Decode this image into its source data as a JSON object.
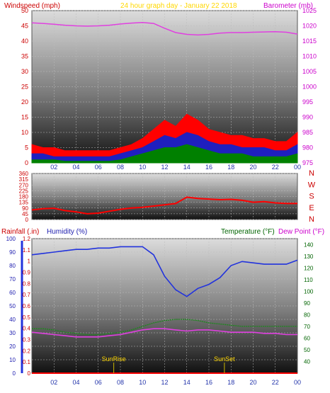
{
  "colors": {
    "wind_speed": "#ff0000",
    "wind_avg": "#1f1fbf",
    "wind_low": "#008000",
    "barometer": "#e040e0",
    "direction": "#ff0000",
    "humidity": "#2233dd",
    "temperature": "#1a8a1a",
    "dew_point": "#e040e0",
    "rainfall": "#ff0000",
    "title": "#ffd700",
    "rain_label": "#cc0000",
    "humidity_label": "#1c1caf",
    "temp_label": "#006400",
    "sun_marker": "#c8b400"
  },
  "header": {
    "windspeed_label": "Windspeed (mph)",
    "title": "24 hour graph day - January 22 2018",
    "barometer_label": "Barometer (mb)"
  },
  "footer": {
    "rainfall_label": "Rainfall (.in)",
    "humidity_label": "Humidity (%)",
    "temperature_label": "Temperature (°F)",
    "dewpoint_label": "Dew Point (°F)",
    "sunrise_label": "SunRise",
    "sunset_label": "SunSet"
  },
  "chart_data": [
    {
      "type": "line",
      "panel": "wind",
      "x_ticks": [
        "02",
        "04",
        "06",
        "08",
        "10",
        "12",
        "14",
        "16",
        "18",
        "20",
        "22",
        "00"
      ],
      "wind_ylim": [
        0,
        50
      ],
      "wind_ticks": [
        0,
        5,
        10,
        15,
        20,
        25,
        30,
        35,
        40,
        45,
        50
      ],
      "baro_ylim": [
        975,
        1025
      ],
      "baro_ticks": [
        975,
        980,
        985,
        990,
        995,
        1000,
        1005,
        1010,
        1015,
        1020,
        1025
      ],
      "x": [
        0,
        1,
        2,
        3,
        4,
        5,
        6,
        7,
        8,
        9,
        10,
        11,
        12,
        13,
        14,
        15,
        16,
        17,
        18,
        19,
        20,
        21,
        22,
        23,
        24
      ],
      "series": [
        {
          "key": "gust",
          "values": [
            6,
            5,
            5,
            4,
            4,
            4,
            4,
            4,
            5,
            6,
            8,
            11,
            14,
            12,
            16,
            14,
            11,
            10,
            9,
            9,
            8,
            8,
            7,
            7,
            10
          ]
        },
        {
          "key": "avg",
          "values": [
            3,
            3,
            2,
            2,
            2,
            2,
            2,
            2,
            3,
            4,
            5,
            7,
            9,
            8,
            10,
            9,
            7,
            6,
            6,
            5,
            5,
            5,
            4,
            4,
            6
          ]
        },
        {
          "key": "low",
          "values": [
            1,
            1,
            1,
            0.5,
            0.5,
            0.5,
            0.5,
            0.5,
            1,
            2,
            3,
            4,
            5,
            5,
            6,
            5,
            4,
            3,
            3,
            3,
            2,
            2,
            2,
            2,
            3
          ]
        },
        {
          "key": "barometer",
          "values": [
            1021,
            1020.8,
            1020.5,
            1020.2,
            1020,
            1019.9,
            1020,
            1020.2,
            1020.6,
            1020.9,
            1021.1,
            1020.8,
            1019.2,
            1017.8,
            1017.2,
            1017,
            1017.2,
            1017.6,
            1017.8,
            1017.8,
            1017.9,
            1018,
            1018.1,
            1017.9,
            1017.3
          ]
        }
      ]
    },
    {
      "type": "line",
      "panel": "direction",
      "ylim": [
        0,
        360
      ],
      "y_ticks": [
        0,
        45,
        90,
        135,
        180,
        225,
        270,
        315,
        360
      ],
      "y_tick_labels": [
        "0",
        "45",
        "90",
        "135",
        "180",
        "225",
        "270",
        "315",
        "360"
      ],
      "compass": [
        "N",
        "W",
        "S",
        "E",
        "N"
      ],
      "x": [
        0,
        1,
        2,
        3,
        4,
        5,
        6,
        7,
        8,
        9,
        10,
        11,
        12,
        13,
        14,
        15,
        16,
        17,
        18,
        19,
        20,
        21,
        22,
        23,
        24
      ],
      "series": [
        {
          "key": "direction",
          "values": [
            75,
            85,
            88,
            70,
            60,
            45,
            50,
            65,
            80,
            90,
            95,
            105,
            115,
            125,
            175,
            165,
            160,
            155,
            158,
            150,
            135,
            140,
            130,
            125,
            125
          ]
        }
      ]
    },
    {
      "type": "line",
      "panel": "temperature",
      "x_ticks": [
        "02",
        "04",
        "06",
        "08",
        "10",
        "12",
        "14",
        "16",
        "18",
        "20",
        "22",
        "00"
      ],
      "rain_ylim": [
        0,
        1.2
      ],
      "rain_ticks": [
        0,
        0.1,
        0.2,
        0.3,
        0.4,
        0.5,
        0.6,
        0.7,
        0.8,
        0.9,
        1,
        1.1,
        1.2
      ],
      "humidity_ylim": [
        0,
        100
      ],
      "humidity_ticks": [
        0,
        10,
        20,
        30,
        40,
        50,
        60,
        70,
        80,
        90,
        100
      ],
      "temp_ylim": [
        30,
        145
      ],
      "temp_ticks": [
        40,
        50,
        60,
        70,
        80,
        90,
        100,
        110,
        120,
        130,
        140
      ],
      "x": [
        0,
        1,
        2,
        3,
        4,
        5,
        6,
        7,
        8,
        9,
        10,
        11,
        12,
        13,
        14,
        15,
        16,
        17,
        18,
        19,
        20,
        21,
        22,
        23,
        24
      ],
      "sunrise_hour": 7.4,
      "sunset_hour": 17.4,
      "series": [
        {
          "key": "humidity",
          "values": [
            88,
            89,
            90,
            91,
            92,
            92,
            93,
            93,
            94,
            94,
            94,
            88,
            72,
            62,
            57,
            63,
            66,
            71,
            80,
            83,
            82,
            81,
            81,
            81,
            84
          ]
        },
        {
          "key": "temperature",
          "values": [
            68,
            68,
            67,
            65,
            64,
            63,
            63,
            64,
            65,
            67,
            70,
            73,
            75,
            76,
            76,
            75,
            73,
            72,
            71,
            70,
            70,
            70,
            70,
            70,
            70
          ]
        },
        {
          "key": "dewpoint",
          "values": [
            65,
            64,
            63,
            62,
            61,
            61,
            61,
            62,
            63,
            65,
            67,
            68,
            68,
            67,
            66,
            67,
            67,
            66,
            65,
            65,
            65,
            64,
            64,
            63,
            63
          ]
        },
        {
          "key": "rainfall",
          "values": [
            0,
            0,
            0,
            0,
            0,
            0,
            0,
            0,
            0,
            0,
            0,
            0,
            0,
            0,
            0,
            0,
            0,
            0,
            0,
            0,
            0,
            0,
            0,
            0,
            0
          ]
        }
      ]
    }
  ]
}
